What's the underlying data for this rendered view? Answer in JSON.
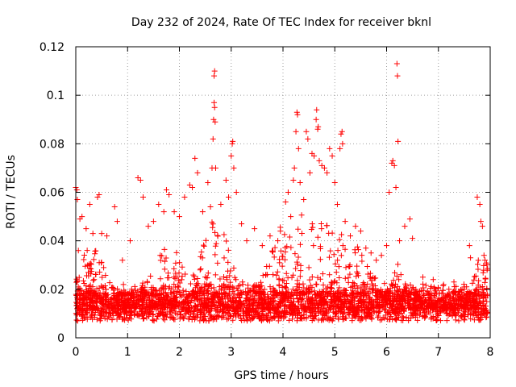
{
  "chart_data": {
    "type": "scatter",
    "title": "Day 232 of 2024, Rate Of TEC Index for receiver bknl",
    "xlabel": "GPS time / hours",
    "ylabel": "ROTI / TECUs",
    "xlim": [
      0,
      8
    ],
    "ylim": [
      0,
      0.12
    ],
    "xticks": [
      0,
      1,
      2,
      3,
      4,
      5,
      6,
      7,
      8
    ],
    "xtick_labels": [
      "0",
      "1",
      "2",
      "3",
      "4",
      "5",
      "6",
      "7",
      "8"
    ],
    "yticks": [
      0,
      0.02,
      0.04,
      0.06,
      0.08,
      0.1,
      0.12
    ],
    "ytick_labels": [
      "0",
      "0.02",
      "0.04",
      "0.06",
      "0.08",
      "0.1",
      "0.12"
    ],
    "grid": true,
    "marker": "+",
    "marker_color": "#ff0000",
    "series": [
      {
        "name": "ROTI",
        "points": [
          [
            0.0,
            0.062
          ],
          [
            0.02,
            0.061
          ],
          [
            0.03,
            0.057
          ],
          [
            0.05,
            0.036
          ],
          [
            0.08,
            0.049
          ],
          [
            0.12,
            0.05
          ],
          [
            0.2,
            0.045
          ],
          [
            0.27,
            0.055
          ],
          [
            0.33,
            0.043
          ],
          [
            0.42,
            0.058
          ],
          [
            0.45,
            0.059
          ],
          [
            0.5,
            0.043
          ],
          [
            0.6,
            0.042
          ],
          [
            0.75,
            0.054
          ],
          [
            0.8,
            0.048
          ],
          [
            0.9,
            0.032
          ],
          [
            1.05,
            0.04
          ],
          [
            1.2,
            0.066
          ],
          [
            1.25,
            0.065
          ],
          [
            1.3,
            0.058
          ],
          [
            1.4,
            0.046
          ],
          [
            1.5,
            0.048
          ],
          [
            1.6,
            0.055
          ],
          [
            1.7,
            0.052
          ],
          [
            1.75,
            0.061
          ],
          [
            1.8,
            0.059
          ],
          [
            1.9,
            0.052
          ],
          [
            2.0,
            0.05
          ],
          [
            2.1,
            0.058
          ],
          [
            2.2,
            0.063
          ],
          [
            2.25,
            0.062
          ],
          [
            2.3,
            0.074
          ],
          [
            2.35,
            0.068
          ],
          [
            2.45,
            0.052
          ],
          [
            2.55,
            0.064
          ],
          [
            2.6,
            0.054
          ],
          [
            2.63,
            0.07
          ],
          [
            2.65,
            0.082
          ],
          [
            2.66,
            0.09
          ],
          [
            2.67,
            0.097
          ],
          [
            2.68,
            0.095
          ],
          [
            2.69,
            0.089
          ],
          [
            2.67,
            0.108
          ],
          [
            2.68,
            0.11
          ],
          [
            2.7,
            0.07
          ],
          [
            2.8,
            0.055
          ],
          [
            2.9,
            0.065
          ],
          [
            2.95,
            0.058
          ],
          [
            3.0,
            0.075
          ],
          [
            3.02,
            0.08
          ],
          [
            3.03,
            0.081
          ],
          [
            3.05,
            0.07
          ],
          [
            3.1,
            0.06
          ],
          [
            3.2,
            0.047
          ],
          [
            3.3,
            0.04
          ],
          [
            3.45,
            0.045
          ],
          [
            3.6,
            0.038
          ],
          [
            3.75,
            0.042
          ],
          [
            3.9,
            0.04
          ],
          [
            3.95,
            0.044
          ],
          [
            4.05,
            0.056
          ],
          [
            4.1,
            0.06
          ],
          [
            4.15,
            0.05
          ],
          [
            4.2,
            0.065
          ],
          [
            4.22,
            0.07
          ],
          [
            4.25,
            0.085
          ],
          [
            4.27,
            0.093
          ],
          [
            4.28,
            0.092
          ],
          [
            4.3,
            0.078
          ],
          [
            4.33,
            0.064
          ],
          [
            4.4,
            0.057
          ],
          [
            4.45,
            0.085
          ],
          [
            4.48,
            0.082
          ],
          [
            4.52,
            0.068
          ],
          [
            4.56,
            0.076
          ],
          [
            4.6,
            0.075
          ],
          [
            4.64,
            0.09
          ],
          [
            4.65,
            0.094
          ],
          [
            4.67,
            0.086
          ],
          [
            4.68,
            0.087
          ],
          [
            4.7,
            0.073
          ],
          [
            4.75,
            0.071
          ],
          [
            4.8,
            0.07
          ],
          [
            4.85,
            0.068
          ],
          [
            4.9,
            0.078
          ],
          [
            4.95,
            0.075
          ],
          [
            5.0,
            0.064
          ],
          [
            5.05,
            0.055
          ],
          [
            5.1,
            0.078
          ],
          [
            5.12,
            0.084
          ],
          [
            5.14,
            0.085
          ],
          [
            5.15,
            0.08
          ],
          [
            5.2,
            0.048
          ],
          [
            5.3,
            0.042
          ],
          [
            5.4,
            0.046
          ],
          [
            5.5,
            0.044
          ],
          [
            5.6,
            0.037
          ],
          [
            5.7,
            0.035
          ],
          [
            5.8,
            0.032
          ],
          [
            5.9,
            0.034
          ],
          [
            6.0,
            0.038
          ],
          [
            6.05,
            0.06
          ],
          [
            6.1,
            0.072
          ],
          [
            6.12,
            0.073
          ],
          [
            6.15,
            0.071
          ],
          [
            6.18,
            0.062
          ],
          [
            6.2,
            0.113
          ],
          [
            6.21,
            0.108
          ],
          [
            6.22,
            0.081
          ],
          [
            6.25,
            0.04
          ],
          [
            6.35,
            0.046
          ],
          [
            6.45,
            0.049
          ],
          [
            6.5,
            0.041
          ],
          [
            6.7,
            0.025
          ],
          [
            6.9,
            0.024
          ],
          [
            7.1,
            0.022
          ],
          [
            7.3,
            0.023
          ],
          [
            7.5,
            0.021
          ],
          [
            7.6,
            0.038
          ],
          [
            7.62,
            0.033
          ],
          [
            7.75,
            0.058
          ],
          [
            7.8,
            0.055
          ],
          [
            7.82,
            0.048
          ],
          [
            7.85,
            0.046
          ],
          [
            7.88,
            0.034
          ],
          [
            7.9,
            0.032
          ]
        ]
      }
    ]
  }
}
